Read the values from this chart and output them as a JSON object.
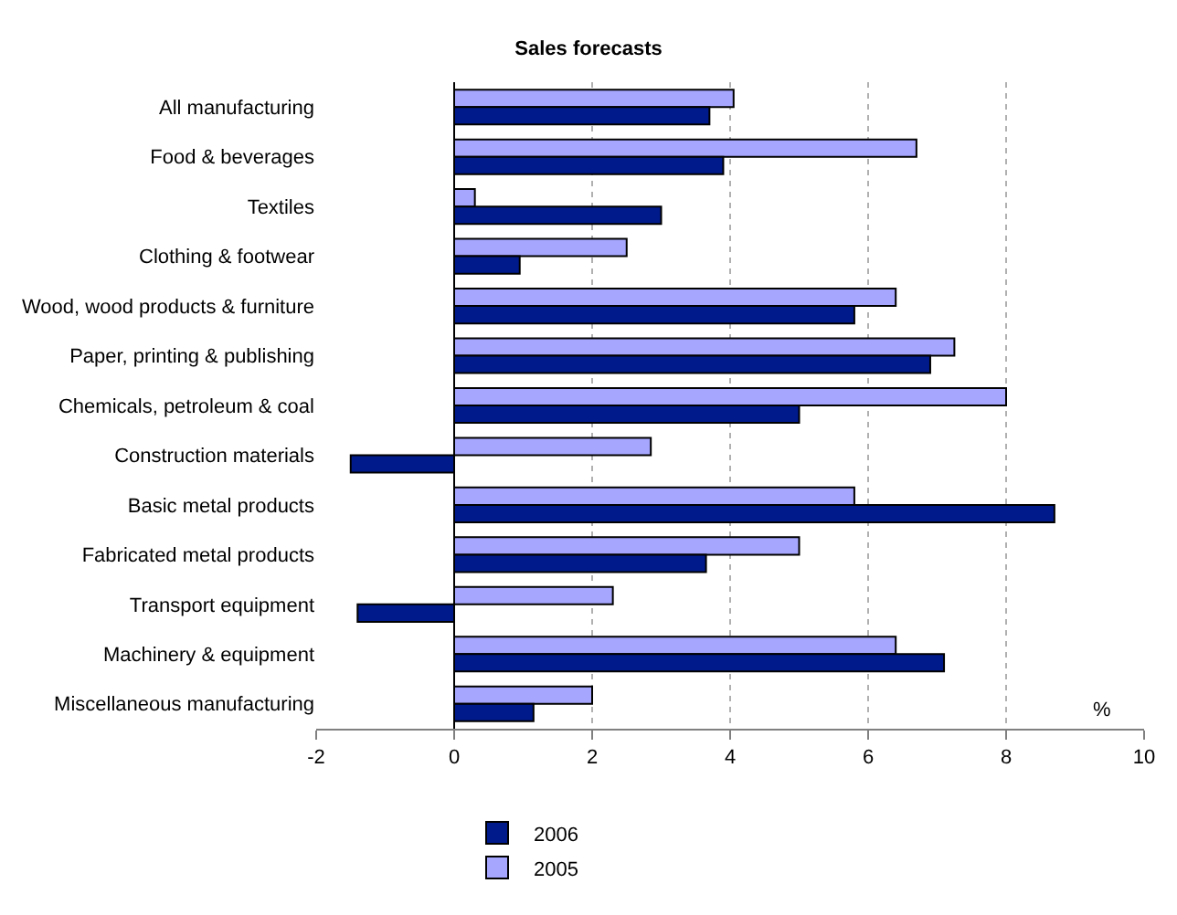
{
  "chart_data": {
    "type": "bar",
    "orientation": "horizontal",
    "title": "Sales forecasts",
    "categories": [
      "All manufacturing",
      "Food & beverages",
      "Textiles",
      "Clothing & footwear",
      "Wood, wood products & furniture",
      "Paper, printing & publishing",
      "Chemicals, petroleum & coal",
      "Construction materials",
      "Basic metal products",
      "Fabricated metal products",
      "Transport equipment",
      "Machinery & equipment",
      "Miscellaneous manufacturing"
    ],
    "series": [
      {
        "name": "2006",
        "color": "#001a8c",
        "values": [
          3.7,
          3.9,
          3.0,
          0.95,
          5.8,
          6.9,
          5.0,
          -1.5,
          8.7,
          3.65,
          -1.4,
          7.1,
          1.15
        ]
      },
      {
        "name": "2005",
        "color": "#a6a6ff",
        "values": [
          4.05,
          6.7,
          0.3,
          2.5,
          6.4,
          7.25,
          8.0,
          2.85,
          5.8,
          5.0,
          2.3,
          6.4,
          2.0
        ]
      }
    ],
    "xlim": [
      -2,
      10
    ],
    "xticks": [
      -2,
      0,
      2,
      4,
      6,
      8,
      10
    ],
    "grid": "x",
    "legend": "bottom",
    "annotations": [
      "%"
    ]
  }
}
